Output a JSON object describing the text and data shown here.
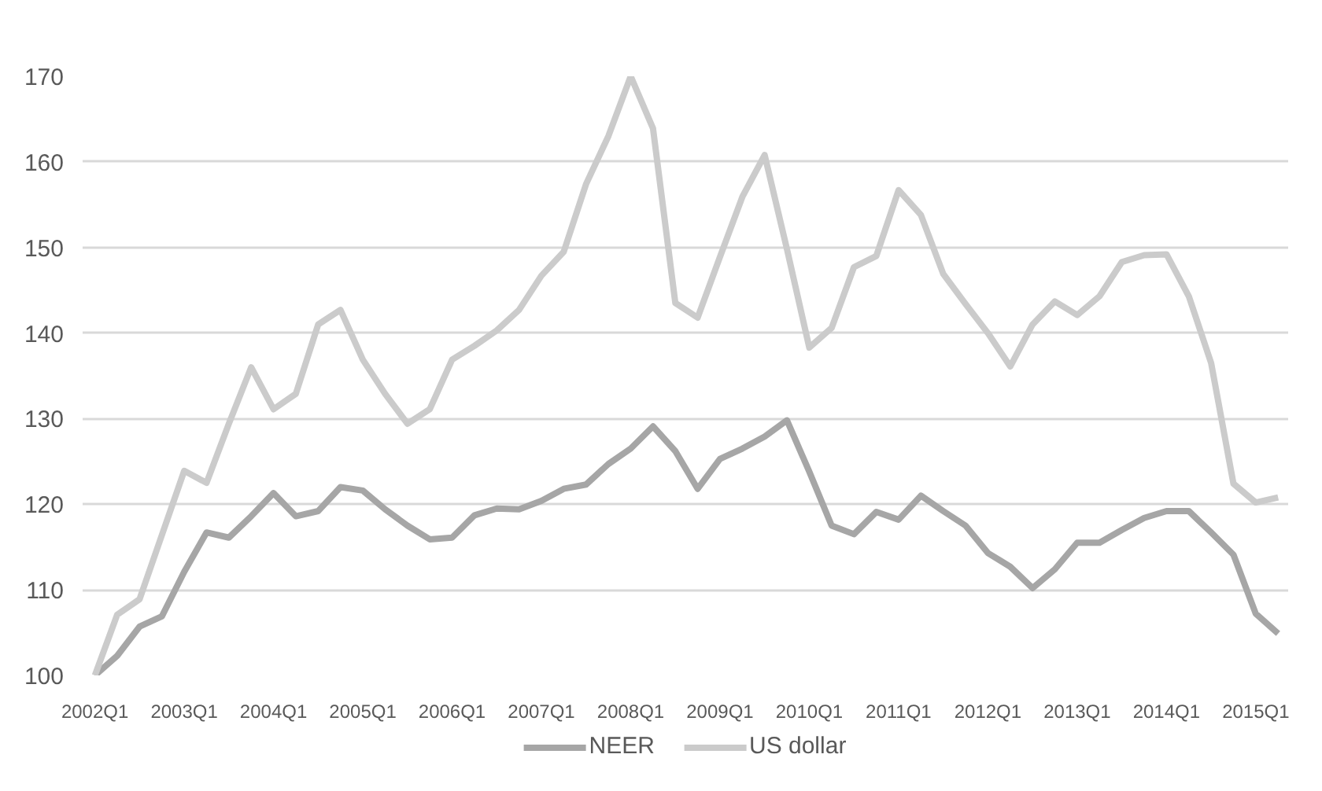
{
  "chart_data": {
    "type": "line",
    "categories": [
      "2002Q1",
      null,
      null,
      null,
      "2003Q1",
      null,
      null,
      null,
      "2004Q1",
      null,
      null,
      null,
      "2005Q1",
      null,
      null,
      null,
      "2006Q1",
      null,
      null,
      null,
      "2007Q1",
      null,
      null,
      null,
      "2008Q1",
      null,
      null,
      null,
      "2009Q1",
      null,
      null,
      null,
      "2010Q1",
      null,
      null,
      null,
      "2011Q1",
      null,
      null,
      null,
      "2012Q1",
      null,
      null,
      null,
      "2013Q1",
      null,
      null,
      null,
      "2014Q1",
      null,
      null,
      null,
      "2015Q1",
      null
    ],
    "series": [
      {
        "name": "NEER",
        "color": "#a6a6a6",
        "values": [
          100,
          102.3,
          105.7,
          106.9,
          112.1,
          116.7,
          116.1,
          118.6,
          121.3,
          118.6,
          119.2,
          122.0,
          121.6,
          119.4,
          117.5,
          115.9,
          116.1,
          118.7,
          119.5,
          119.4,
          120.4,
          121.8,
          122.3,
          124.7,
          126.5,
          129.1,
          126.2,
          121.8,
          125.3,
          126.5,
          127.9,
          129.8,
          123.8,
          117.5,
          116.5,
          119.1,
          118.2,
          121.0,
          119.2,
          117.5,
          114.3,
          112.7,
          110.2,
          112.4,
          115.5,
          115.5,
          117.0,
          118.4,
          119.2,
          119.2,
          116.7,
          114.1,
          107.2,
          104.9
        ]
      },
      {
        "name": "US dollar",
        "color": "#cbcbcb",
        "values": [
          100,
          107.1,
          108.9,
          116.4,
          123.9,
          122.5,
          129.4,
          136.0,
          131.1,
          132.9,
          141.0,
          142.7,
          136.9,
          132.9,
          129.4,
          131.1,
          136.9,
          138.5,
          140.3,
          142.7,
          146.7,
          149.5,
          157.4,
          163.0,
          170.0,
          163.9,
          143.5,
          141.8,
          148.9,
          155.9,
          160.8,
          149.8,
          138.3,
          140.6,
          147.7,
          149.0,
          156.7,
          153.8,
          146.9,
          143.4,
          140.0,
          136.1,
          141.0,
          143.7,
          142.1,
          144.3,
          148.3,
          149.1,
          149.2,
          144.3,
          136.5,
          122.4,
          120.2,
          120.8
        ]
      }
    ],
    "ylim": [
      100,
      170
    ],
    "yticks": [
      100,
      110,
      120,
      130,
      140,
      150,
      160,
      170
    ],
    "grid": "y",
    "legend": "bottom",
    "line_style": "solid"
  }
}
